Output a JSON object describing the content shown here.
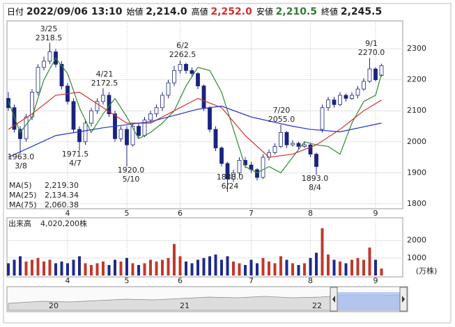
{
  "header": {
    "items": [
      {
        "label": "日付",
        "value": "2022/09/06 13:10",
        "color": "#222222"
      },
      {
        "label": "始値",
        "value": "2,214.0",
        "color": "#222222"
      },
      {
        "label": "高値",
        "value": "2,252.0",
        "color": "#d32f2f"
      },
      {
        "label": "安値",
        "value": "2,210.5",
        "color": "#2e7d32"
      },
      {
        "label": "終値",
        "value": "2,245.5",
        "color": "#222222"
      }
    ]
  },
  "chart_data": [
    {
      "type": "candlestick",
      "open": [
        2140,
        2110,
        2040,
        2010,
        2080,
        2160,
        2240,
        2260,
        2290,
        2250,
        2180,
        2130,
        2040,
        2000,
        2060,
        2100,
        2130,
        2150,
        2090,
        2010,
        2040,
        1990,
        2050,
        2020,
        2070,
        2090,
        2110,
        2150,
        2190,
        2230,
        2250,
        2230,
        2220,
        2180,
        2110,
        2040,
        1980,
        1930,
        1880,
        1900,
        1940,
        1925,
        1910,
        1885,
        1950,
        1965,
        1985,
        2030,
        1990,
        1995,
        1985,
        1990,
        1960,
        2040,
        2110,
        2135,
        2120,
        2150,
        2140,
        2150,
        2170,
        2195,
        2235,
        2214
      ],
      "high": [
        2160,
        2120,
        2050,
        2090,
        2170,
        2250,
        2275,
        2318.5,
        2300,
        2260,
        2190,
        2140,
        2050,
        2070,
        2110,
        2140,
        2172.5,
        2160,
        2100,
        2050,
        2050,
        2060,
        2060,
        2080,
        2100,
        2120,
        2160,
        2200,
        2245,
        2262.5,
        2255,
        2240,
        2225,
        2185,
        2115,
        2050,
        1985,
        1935,
        1910,
        1950,
        1950,
        1935,
        1915,
        1960,
        1975,
        1995,
        2055,
        2035,
        2005,
        2000,
        2000,
        1995,
        1965,
        2120,
        2145,
        2145,
        2160,
        2155,
        2160,
        2180,
        2205,
        2270,
        2240,
        2252
      ],
      "low": [
        2100,
        2030,
        1963,
        2000,
        2070,
        2150,
        2230,
        2250,
        2240,
        2170,
        2120,
        2030,
        1971.5,
        1990,
        2050,
        2090,
        2120,
        2080,
        2000,
        2000,
        1920,
        1985,
        2010,
        2015,
        2060,
        2080,
        2100,
        2140,
        2180,
        2220,
        2220,
        2210,
        2170,
        2100,
        2030,
        1970,
        1920,
        1838,
        1870,
        1890,
        1915,
        1900,
        1875,
        1880,
        1940,
        1960,
        1980,
        1980,
        1985,
        1975,
        1980,
        1950,
        1893,
        2030,
        2100,
        2110,
        2115,
        2130,
        2135,
        2140,
        2165,
        2190,
        2195,
        2210.5
      ],
      "close": [
        2110,
        2040,
        2010,
        2080,
        2160,
        2240,
        2260,
        2290,
        2250,
        2180,
        2130,
        2040,
        2000,
        2060,
        2100,
        2130,
        2150,
        2090,
        2010,
        2040,
        1990,
        2050,
        2020,
        2070,
        2090,
        2110,
        2150,
        2190,
        2230,
        2250,
        2230,
        2220,
        2180,
        2110,
        2040,
        1980,
        1930,
        1880,
        1900,
        1940,
        1925,
        1910,
        1885,
        1950,
        1965,
        1985,
        2030,
        1990,
        1995,
        1985,
        1990,
        1960,
        1920,
        2110,
        2135,
        2120,
        2150,
        2140,
        2150,
        2170,
        2195,
        2235,
        2200,
        2245.5
      ],
      "up_color": "#ffffff",
      "down_color": "#1a237e",
      "edge_color": "#1a237e",
      "ylim": [
        1784,
        2390
      ],
      "yticks": [
        1800,
        1900,
        2000,
        2100,
        2200,
        2300
      ],
      "grid": true,
      "xticks": [
        {
          "value": 10,
          "label": "4"
        },
        {
          "value": 20,
          "label": "5"
        },
        {
          "value": 29,
          "label": "6"
        },
        {
          "value": 41,
          "label": "7"
        },
        {
          "value": 51,
          "label": "8"
        },
        {
          "value": 62,
          "label": "9"
        }
      ],
      "ma": [
        {
          "name": "MA(5)",
          "color": "#2e8b2e",
          "latest_label": "2,219.30",
          "x": [
            0,
            2,
            4,
            6,
            8,
            10,
            12,
            14,
            16,
            18,
            20,
            22,
            24,
            26,
            28,
            30,
            32,
            34,
            36,
            38,
            40,
            42,
            44,
            46,
            48,
            50,
            52,
            54,
            56,
            58,
            60,
            62,
            63
          ],
          "values": [
            2130,
            2030,
            2080,
            2200,
            2270,
            2220,
            2110,
            2030,
            2090,
            2140,
            2080,
            2010,
            2030,
            2060,
            2100,
            2180,
            2240,
            2230,
            2160,
            2040,
            1920,
            1900,
            1920,
            1900,
            1950,
            2000,
            1990,
            1985,
            1960,
            2060,
            2130,
            2150,
            2219.3
          ]
        },
        {
          "name": "MA(25)",
          "color": "#d32f2f",
          "latest_label": "2,134.34",
          "x": [
            0,
            4,
            8,
            12,
            16,
            20,
            24,
            28,
            32,
            36,
            40,
            44,
            48,
            52,
            56,
            60,
            63
          ],
          "values": [
            2040,
            2090,
            2150,
            2160,
            2110,
            2060,
            2060,
            2100,
            2140,
            2110,
            2020,
            1950,
            1960,
            1990,
            2040,
            2100,
            2134.34
          ]
        },
        {
          "name": "MA(75)",
          "color": "#2233cc",
          "latest_label": "2,060.38",
          "x": [
            0,
            8,
            16,
            24,
            32,
            36,
            41,
            48,
            51,
            56,
            63
          ],
          "values": [
            1950,
            2020,
            2045,
            2065,
            2105,
            2115,
            2080,
            2050,
            2040,
            2032,
            2060.38
          ]
        }
      ],
      "annotations": [
        [
          "3/25",
          "2318.5"
        ],
        [
          "1963.0",
          "3/8"
        ],
        [
          "1971.5",
          "4/7"
        ],
        [
          "4/21",
          "2172.5"
        ],
        [
          "1920.0",
          "5/10"
        ],
        [
          "6/2",
          "2262.5"
        ],
        [
          "1838.0",
          "6/24"
        ],
        [
          "7/20",
          "2055.0"
        ],
        [
          "1893.0",
          "8/4"
        ],
        [
          "9/1",
          "2270.0"
        ]
      ]
    },
    {
      "type": "bar",
      "title": "出来高",
      "latest_label": "4,020,200株",
      "unit": "(万株)",
      "values": [
        700,
        900,
        1100,
        800,
        900,
        1000,
        800,
        900,
        700,
        800,
        700,
        900,
        1100,
        700,
        600,
        700,
        800,
        600,
        900,
        800,
        1000,
        700,
        600,
        700,
        900,
        800,
        900,
        1000,
        1800,
        1100,
        800,
        700,
        900,
        1000,
        1100,
        1200,
        900,
        1100,
        800,
        700,
        600,
        900,
        700,
        1000,
        800,
        700,
        1100,
        900,
        700,
        600,
        700,
        1000,
        1300,
        2700,
        1200,
        900,
        800,
        700,
        900,
        1000,
        900,
        1600,
        900,
        402.02
      ],
      "up_color": "#c0392b",
      "down_color": "#1f2a8a",
      "ylim": [
        0,
        3300
      ],
      "yticks": [
        1000,
        2000
      ],
      "xticks": [
        {
          "value": 10,
          "label": "4"
        },
        {
          "value": 20,
          "label": "5"
        },
        {
          "value": 29,
          "label": "6"
        },
        {
          "value": 41,
          "label": "7"
        },
        {
          "value": 51,
          "label": "8"
        },
        {
          "value": 62,
          "label": "9"
        }
      ]
    }
  ],
  "navigator": {
    "labels": [
      "20",
      "21",
      "22"
    ]
  }
}
